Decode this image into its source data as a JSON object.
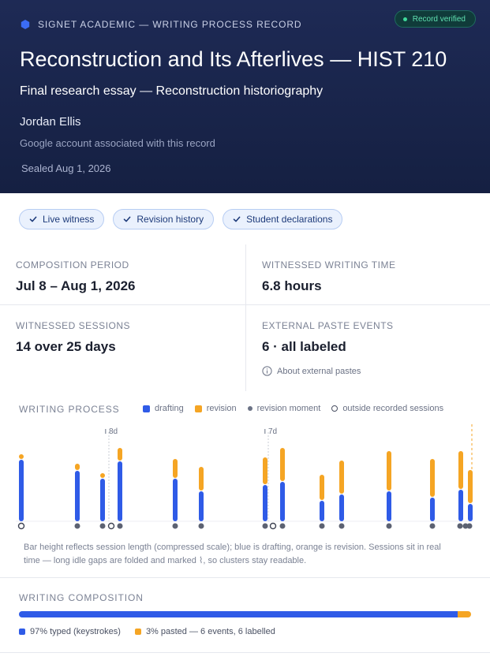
{
  "header": {
    "brand": "SIGNET ACADEMIC — WRITING PROCESS RECORD",
    "verified_badge": "Record verified",
    "title": "Reconstruction and Its Afterlives — HIST 210",
    "subtitle": "Final research essay — Reconstruction historiography",
    "student_name": "Jordan Ellis",
    "account_note": "Google account associated with this record",
    "sealed": "Sealed Aug 1, 2026",
    "colors": {
      "background": "#1e2a55",
      "brand_icon": "#3b6cf6",
      "verified": "#3fd99a"
    }
  },
  "chips": [
    {
      "label": "Live witness"
    },
    {
      "label": "Revision history"
    },
    {
      "label": "Student declarations"
    }
  ],
  "stats": {
    "composition_period": {
      "label": "COMPOSITION PERIOD",
      "value": "Jul 8 – Aug 1, 2026"
    },
    "writing_time": {
      "label": "WITNESSED WRITING TIME",
      "value": "6.8 hours"
    },
    "sessions": {
      "label": "WITNESSED SESSIONS",
      "value": "14 over 25 days"
    },
    "paste_events": {
      "label": "EXTERNAL PASTE EVENTS",
      "value": "6 · all labeled",
      "link": "About external pastes",
      "link_icon": "info-icon"
    }
  },
  "process": {
    "title": "WRITING PROCESS",
    "legend": {
      "drafting": "drafting",
      "revision": "revision",
      "revision_moment": "revision moment",
      "outside": "outside recorded sessions"
    },
    "caption": "Bar height reflects session length (compressed scale); blue is drafting, orange is revision. Sessions sit in real time — long idle gaps are folded and marked ⌇, so clusters stay readable.",
    "colors": {
      "drafting": "#2f5be7",
      "revision": "#f5a524",
      "marker": "#5c6272"
    }
  },
  "chart_data": {
    "type": "bar",
    "stacked": true,
    "units": "compressed session length (relative)",
    "series": [
      {
        "name": "drafting",
        "values": [
          39,
          32,
          27,
          38,
          27,
          19,
          23,
          25,
          13,
          17,
          19,
          15,
          20,
          11
        ]
      },
      {
        "name": "revision",
        "values": [
          3,
          4,
          3,
          8,
          12,
          15,
          17,
          21,
          16,
          21,
          25,
          24,
          24,
          21
        ]
      }
    ],
    "markers": [
      {
        "kind": "outside"
      },
      {
        "kind": "revision"
      },
      {
        "kind": "revision"
      },
      {
        "kind": "outside"
      },
      {
        "kind": "revision"
      },
      {
        "kind": "revision"
      },
      {
        "kind": "revision"
      },
      {
        "kind": "revision"
      },
      {
        "kind": "outside"
      },
      {
        "kind": "revision"
      },
      {
        "kind": "revision"
      },
      {
        "kind": "revision"
      },
      {
        "kind": "revision"
      },
      {
        "kind": "revision"
      },
      {
        "kind": "revision"
      },
      {
        "kind": "revision"
      },
      {
        "kind": "revision"
      }
    ],
    "gaps": [
      {
        "label": "8d"
      },
      {
        "label": "7d"
      }
    ],
    "grid": false,
    "legend": "top"
  },
  "composition": {
    "title": "WRITING COMPOSITION",
    "typed_fraction": 0.97,
    "typed_label": "97% typed (keystrokes)",
    "pasted_label": "3% pasted — 6 events, 6 labelled"
  }
}
